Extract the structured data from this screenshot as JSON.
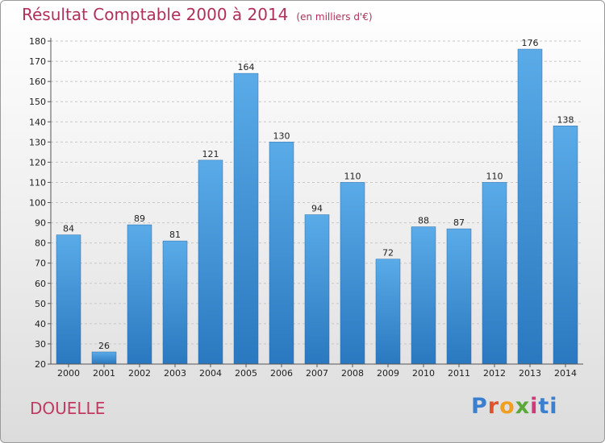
{
  "chart_data": {
    "type": "bar",
    "title": "Résultat Comptable 2000 à 2014",
    "subtitle": "(en milliers d'€)",
    "categories": [
      "2000",
      "2001",
      "2002",
      "2003",
      "2004",
      "2005",
      "2006",
      "2007",
      "2008",
      "2009",
      "2010",
      "2011",
      "2012",
      "2013",
      "2014"
    ],
    "values": [
      84,
      26,
      89,
      81,
      121,
      164,
      130,
      94,
      110,
      72,
      88,
      87,
      110,
      176,
      138
    ],
    "ylim": [
      20,
      180
    ],
    "yticks": [
      20,
      30,
      40,
      50,
      60,
      70,
      80,
      90,
      100,
      110,
      120,
      130,
      140,
      150,
      160,
      170,
      180
    ],
    "grid": true,
    "bar_color": "#3d8fd4",
    "legend": "none"
  },
  "footer": {
    "city": "DOUELLE",
    "brand_letters": [
      "P",
      "r",
      "o",
      "x",
      "i",
      "ti"
    ]
  }
}
